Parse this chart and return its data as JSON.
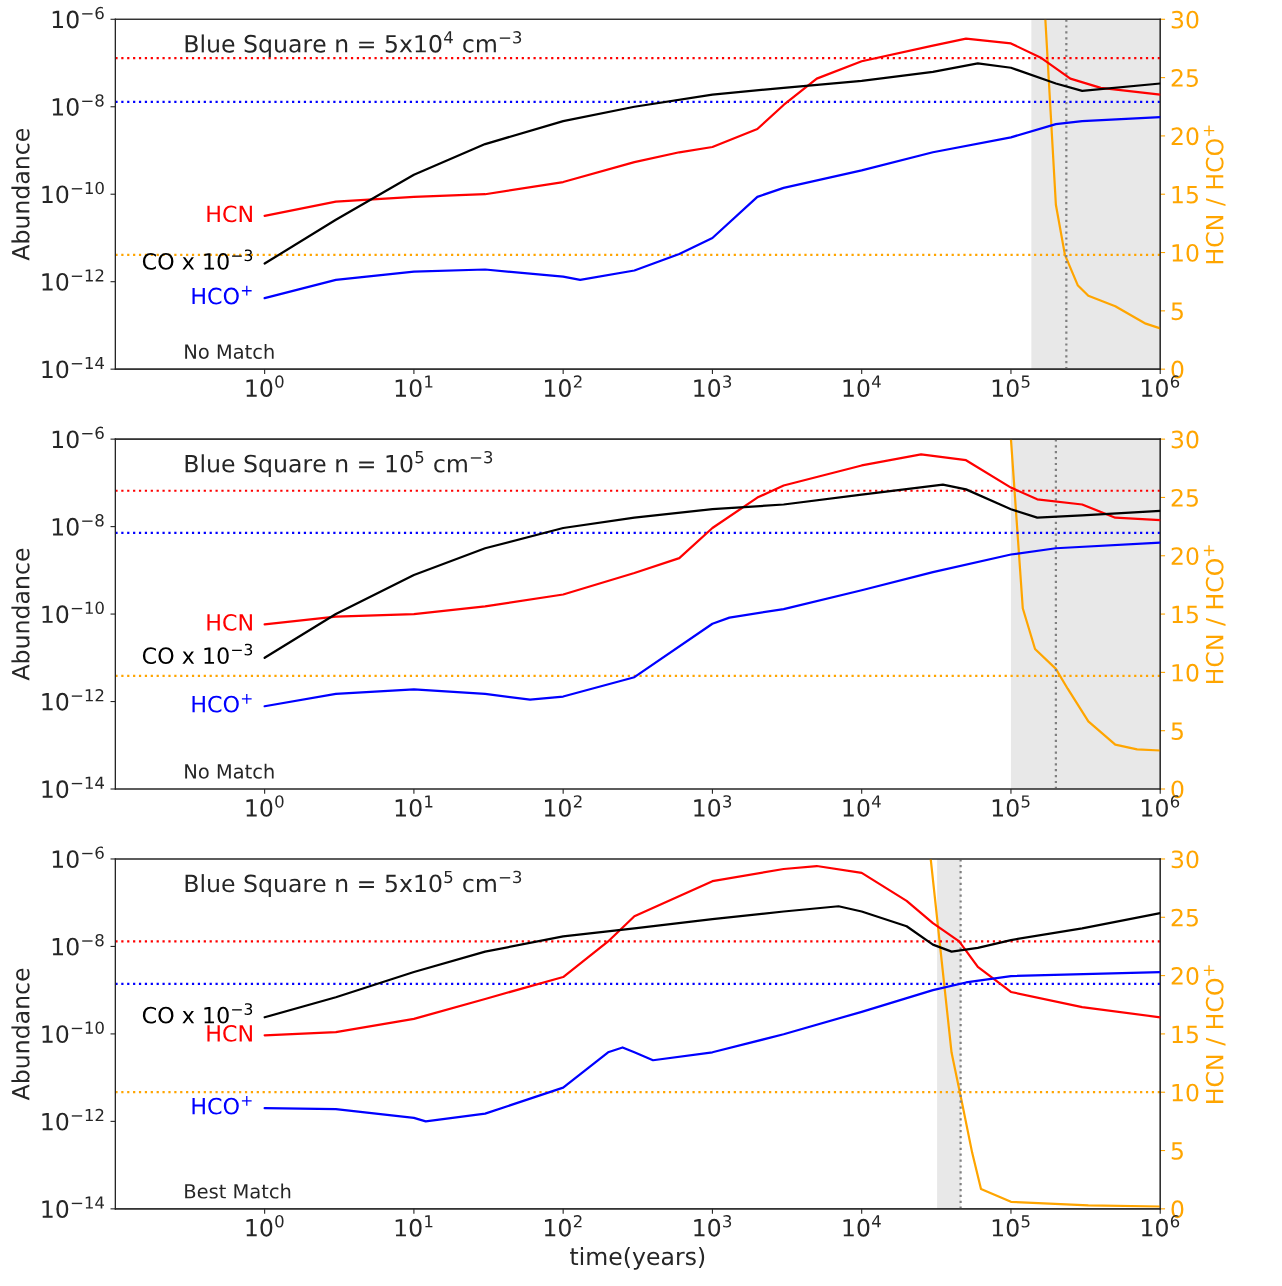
{
  "chart_data": [
    {
      "type": "line",
      "title": "Blue Square n = 5x10$^{4}$ cm$^{−3}$",
      "ylabel": "Abundance",
      "y2label": "HCN / HCO$^{+}$",
      "log": "xy",
      "grid": false,
      "legend": false,
      "xlim": [
        0.1,
        1000000
      ],
      "xticks": [
        {
          "value": 1,
          "label": "10$^{0}$"
        },
        {
          "value": 10,
          "label": "10$^{1}$"
        },
        {
          "value": 100,
          "label": "10$^{2}$"
        },
        {
          "value": 1000,
          "label": "10$^{3}$"
        },
        {
          "value": 10000,
          "label": "10$^{4}$"
        },
        {
          "value": 100000,
          "label": "10$^{5}$"
        },
        {
          "value": 1000000,
          "label": "10$^{6}$"
        }
      ],
      "ylim": [
        1e-14,
        1e-06
      ],
      "yticks": [
        {
          "value": 1e-14,
          "label": "10$^{−14}$"
        },
        {
          "value": 1e-12,
          "label": "10$^{−12}$"
        },
        {
          "value": 1e-10,
          "label": "10$^{−10}$"
        },
        {
          "value": 1e-08,
          "label": "10$^{−8}$"
        },
        {
          "value": 1e-06,
          "label": "10$^{−6}$"
        }
      ],
      "y2lim": [
        0,
        30
      ],
      "y2ticks": [
        0,
        5,
        10,
        15,
        20,
        25,
        30
      ],
      "series": [
        {
          "name": "HCN",
          "color": "#ff0000",
          "x": [
            1,
            3,
            10,
            30,
            100,
            300,
            600,
            1000,
            2000,
            3000,
            5000,
            10000,
            30000,
            50000,
            100000,
            160000,
            250000,
            400000,
            1000000
          ],
          "values": [
            3.2e-11,
            6.8e-11,
            8.7e-11,
            1e-10,
            1.9e-10,
            5.4e-10,
            9.1e-10,
            1.2e-09,
            3.1e-09,
            1.1e-08,
            4.4e-08,
            1.1e-07,
            2.5e-07,
            3.6e-07,
            2.8e-07,
            1.3e-07,
            4.4e-08,
            2.7e-08,
            1.9e-08
          ]
        },
        {
          "name": "CO x 10$^{−3}$",
          "color": "#000000",
          "x": [
            1,
            3,
            10,
            30,
            100,
            300,
            1000,
            3000,
            10000,
            30000,
            60000,
            100000,
            200000,
            300000,
            1000000
          ],
          "values": [
            2.6e-12,
            2.6e-11,
            2.8e-10,
            1.4e-09,
            4.7e-09,
            1e-08,
            1.9e-08,
            2.7e-08,
            3.9e-08,
            6.3e-08,
            9.8e-08,
            7.8e-08,
            3.4e-08,
            2.3e-08,
            3.4e-08
          ]
        },
        {
          "name": "HCO$^{+}$",
          "color": "#0000ff",
          "x": [
            1,
            3,
            10,
            30,
            100,
            130,
            300,
            600,
            1000,
            2000,
            3000,
            10000,
            30000,
            100000,
            200000,
            300000,
            1000000
          ],
          "values": [
            4.2e-13,
            1.1e-12,
            1.7e-12,
            1.9e-12,
            1.3e-12,
            1.1e-12,
            1.8e-12,
            4.3e-12,
            1e-11,
            8.7e-11,
            1.4e-10,
            3.5e-10,
            9.1e-10,
            2e-09,
            4e-09,
            4.7e-09,
            5.8e-09
          ]
        },
        {
          "color": "#ffa500",
          "axis": "y2",
          "x": [
            170000,
            200000,
            230000,
            280000,
            330000,
            500000,
            800000,
            1000000
          ],
          "values": [
            30,
            14.1,
            9.8,
            7.2,
            6.3,
            5.4,
            3.9,
            3.5
          ]
        }
      ],
      "ref_lines": [
        {
          "axis": "y",
          "value": 1.3e-07,
          "color": "#ff0000",
          "line_style": "dotted"
        },
        {
          "axis": "y",
          "value": 1.3e-08,
          "color": "#0000ff",
          "line_style": "dotted"
        },
        {
          "axis": "y2",
          "value": 9.8,
          "color": "#ffa500",
          "line_style": "dotted"
        },
        {
          "axis": "x",
          "value": 235000,
          "color": "#808080",
          "line_style": "dotted"
        }
      ],
      "bands": [
        {
          "axis": "x",
          "from": 137000,
          "to": 1000000,
          "color": "#e8e8e8"
        }
      ],
      "annotations": [
        "No Match"
      ]
    },
    {
      "type": "line",
      "title": "Blue Square n = 10$^{5}$ cm$^{−3}$",
      "ylabel": "Abundance",
      "y2label": "HCN / HCO$^{+}$",
      "log": "xy",
      "grid": false,
      "legend": false,
      "xlim": [
        0.1,
        1000000
      ],
      "xticks": [
        {
          "value": 1,
          "label": "10$^{0}$"
        },
        {
          "value": 10,
          "label": "10$^{1}$"
        },
        {
          "value": 100,
          "label": "10$^{2}$"
        },
        {
          "value": 1000,
          "label": "10$^{3}$"
        },
        {
          "value": 10000,
          "label": "10$^{4}$"
        },
        {
          "value": 100000,
          "label": "10$^{5}$"
        },
        {
          "value": 1000000,
          "label": "10$^{6}$"
        }
      ],
      "ylim": [
        1e-14,
        1e-06
      ],
      "yticks": [
        {
          "value": 1e-14,
          "label": "10$^{−14}$"
        },
        {
          "value": 1e-12,
          "label": "10$^{−12}$"
        },
        {
          "value": 1e-10,
          "label": "10$^{−10}$"
        },
        {
          "value": 1e-08,
          "label": "10$^{−8}$"
        },
        {
          "value": 1e-06,
          "label": "10$^{−6}$"
        }
      ],
      "y2lim": [
        0,
        30
      ],
      "y2ticks": [
        0,
        5,
        10,
        15,
        20,
        25,
        30
      ],
      "series": [
        {
          "name": "HCN",
          "color": "#ff0000",
          "x": [
            1,
            3,
            10,
            30,
            100,
            300,
            600,
            1000,
            2000,
            3000,
            10000,
            25000,
            50000,
            100000,
            150000,
            300000,
            500000,
            1000000
          ],
          "values": [
            5.8e-11,
            8.7e-11,
            1e-10,
            1.5e-10,
            2.8e-10,
            8.7e-10,
            1.9e-09,
            9.3e-09,
            4.6e-08,
            8.7e-08,
            2.5e-07,
            4.5e-07,
            3.3e-07,
            7.8e-08,
            4.2e-08,
            3.2e-08,
            1.6e-08,
            1.4e-08
          ]
        },
        {
          "name": "CO x 10$^{−3}$",
          "color": "#000000",
          "x": [
            1,
            3,
            10,
            30,
            100,
            300,
            1000,
            3000,
            10000,
            35000,
            50000,
            100000,
            150000,
            300000,
            1000000
          ],
          "values": [
            1e-11,
            1e-10,
            7.8e-10,
            3.2e-09,
            9.3e-09,
            1.6e-08,
            2.5e-08,
            3.2e-08,
            5.4e-08,
            9.1e-08,
            7.1e-08,
            2.5e-08,
            1.6e-08,
            1.8e-08,
            2.3e-08
          ]
        },
        {
          "name": "HCO$^{+}$",
          "color": "#0000ff",
          "x": [
            1,
            3,
            10,
            30,
            60,
            100,
            300,
            1000,
            1300,
            3000,
            10000,
            30000,
            100000,
            200000,
            1000000
          ],
          "values": [
            7.8e-13,
            1.5e-12,
            1.9e-12,
            1.5e-12,
            1.1e-12,
            1.3e-12,
            3.6e-12,
            6e-11,
            8.3e-11,
            1.3e-10,
            3.5e-10,
            9.1e-10,
            2.3e-09,
            3.2e-09,
            4.3e-09
          ]
        },
        {
          "color": "#ffa500",
          "axis": "y2",
          "x": [
            100000,
            120000,
            145000,
            200000,
            240000,
            330000,
            500000,
            700000,
            1000000
          ],
          "values": [
            30,
            15.5,
            12,
            10.3,
            8.6,
            5.8,
            3.8,
            3.4,
            3.3
          ]
        }
      ],
      "ref_lines": [
        {
          "axis": "y",
          "value": 6.6e-08,
          "color": "#ff0000",
          "line_style": "dotted"
        },
        {
          "axis": "y",
          "value": 7.2e-09,
          "color": "#0000ff",
          "line_style": "dotted"
        },
        {
          "axis": "y2",
          "value": 9.7,
          "color": "#ffa500",
          "line_style": "dotted"
        },
        {
          "axis": "x",
          "value": 200000,
          "color": "#808080",
          "line_style": "dotted"
        }
      ],
      "bands": [
        {
          "axis": "x",
          "from": 100000,
          "to": 1000000,
          "color": "#e8e8e8"
        }
      ],
      "annotations": [
        "No Match"
      ]
    },
    {
      "type": "line",
      "title": "Blue Square n = 5x10$^{5}$ cm$^{−3}$",
      "xlabel": "time(years)",
      "ylabel": "Abundance",
      "y2label": "HCN / HCO$^{+}$",
      "log": "xy",
      "grid": false,
      "legend": false,
      "xlim": [
        0.1,
        1000000
      ],
      "xticks": [
        {
          "value": 1,
          "label": "10$^{0}$"
        },
        {
          "value": 10,
          "label": "10$^{1}$"
        },
        {
          "value": 100,
          "label": "10$^{2}$"
        },
        {
          "value": 1000,
          "label": "10$^{3}$"
        },
        {
          "value": 10000,
          "label": "10$^{4}$"
        },
        {
          "value": 100000,
          "label": "10$^{5}$"
        },
        {
          "value": 1000000,
          "label": "10$^{6}$"
        }
      ],
      "ylim": [
        1e-14,
        1e-06
      ],
      "yticks": [
        {
          "value": 1e-14,
          "label": "10$^{−14}$"
        },
        {
          "value": 1e-12,
          "label": "10$^{−12}$"
        },
        {
          "value": 1e-10,
          "label": "10$^{−10}$"
        },
        {
          "value": 1e-08,
          "label": "10$^{−8}$"
        },
        {
          "value": 1e-06,
          "label": "10$^{−6}$"
        }
      ],
      "y2lim": [
        0,
        30
      ],
      "y2ticks": [
        0,
        5,
        10,
        15,
        20,
        25,
        30
      ],
      "series": [
        {
          "name": "HCN",
          "color": "#ff0000",
          "x": [
            1,
            3,
            10,
            30,
            100,
            200,
            300,
            1000,
            3000,
            5000,
            10000,
            20000,
            30000,
            45000,
            60000,
            100000,
            300000,
            1000000
          ],
          "values": [
            9.3e-11,
            1.1e-10,
            2.2e-10,
            6.3e-10,
            2e-09,
            1.3e-08,
            4.9e-08,
            3.1e-07,
            5.9e-07,
            6.9e-07,
            4.8e-07,
            1.1e-07,
            3.4e-08,
            1.3e-08,
            3.4e-09,
            9.1e-10,
            4.1e-10,
            2.4e-10
          ]
        },
        {
          "name": "CO x 10$^{−3}$",
          "color": "#000000",
          "x": [
            1,
            3,
            10,
            30,
            100,
            300,
            1000,
            3000,
            7000,
            10000,
            20000,
            30000,
            40000,
            60000,
            100000,
            300000,
            1000000
          ],
          "values": [
            2.4e-10,
            6.9e-10,
            2.6e-09,
            7.6e-09,
            1.7e-08,
            2.6e-08,
            4.2e-08,
            6.3e-08,
            8.3e-08,
            6.3e-08,
            2.9e-08,
            1.1e-08,
            7.6e-09,
            9.3e-09,
            1.4e-08,
            2.6e-08,
            5.8e-08
          ]
        },
        {
          "name": "HCO$^{+}$",
          "color": "#0000ff",
          "x": [
            1,
            3,
            10,
            12,
            30,
            100,
            200,
            250,
            300,
            400,
            1000,
            3000,
            10000,
            30000,
            50000,
            100000,
            1000000
          ],
          "values": [
            2e-12,
            1.9e-12,
            1.2e-12,
            1e-12,
            1.5e-12,
            5.9e-12,
            3.8e-11,
            4.9e-11,
            3.8e-11,
            2.5e-11,
            3.8e-11,
            9.8e-11,
            3.2e-10,
            1e-09,
            1.5e-09,
            2.1e-09,
            2.6e-09
          ]
        },
        {
          "color": "#ffa500",
          "axis": "y2",
          "x": [
            29000,
            35000,
            40000,
            47000,
            55000,
            63000,
            100000,
            330000,
            1000000
          ],
          "values": [
            30,
            20.3,
            13.4,
            9.1,
            4.8,
            1.7,
            0.6,
            0.3,
            0.2
          ]
        }
      ],
      "ref_lines": [
        {
          "axis": "y",
          "value": 1.3e-08,
          "color": "#ff0000",
          "line_style": "dotted"
        },
        {
          "axis": "y",
          "value": 1.4e-09,
          "color": "#0000ff",
          "line_style": "dotted"
        },
        {
          "axis": "y2",
          "value": 10,
          "color": "#ffa500",
          "line_style": "dotted"
        },
        {
          "axis": "x",
          "value": 46000,
          "color": "#808080",
          "line_style": "dotted"
        }
      ],
      "bands": [
        {
          "axis": "x",
          "from": 32000,
          "to": 46000,
          "color": "#e8e8e8"
        }
      ],
      "annotations": [
        "Best Match"
      ]
    }
  ]
}
